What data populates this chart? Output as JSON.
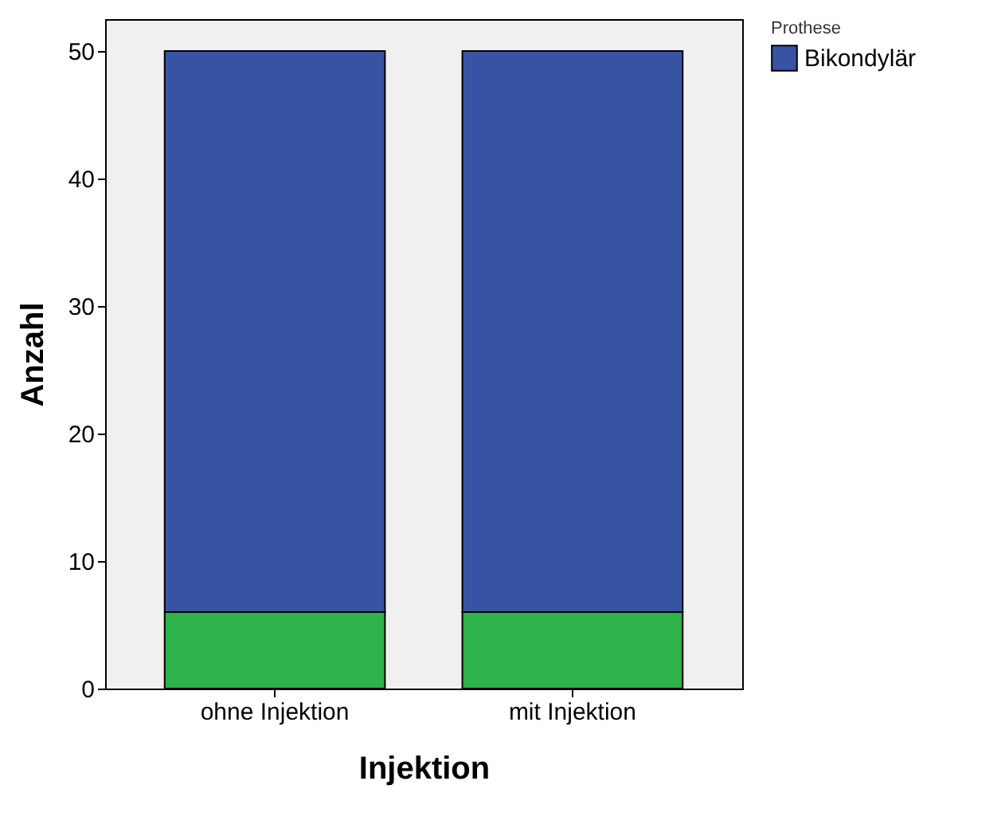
{
  "chart_data": {
    "type": "bar",
    "xlabel": "Injektion",
    "ylabel": "Anzahl",
    "legend_title": "Prothese",
    "categories": [
      "ohne Injektion",
      "mit Injektion"
    ],
    "stacked": true,
    "series": [
      {
        "color": "#2db34a",
        "values": [
          6,
          6
        ]
      },
      {
        "name": "Bikondylär",
        "color": "#3953a4",
        "values": [
          44,
          44
        ]
      }
    ],
    "ylim": [
      0,
      52.5
    ],
    "yticks": [
      0,
      10,
      20,
      30,
      40,
      50
    ],
    "legend": "top right",
    "grid": false
  }
}
